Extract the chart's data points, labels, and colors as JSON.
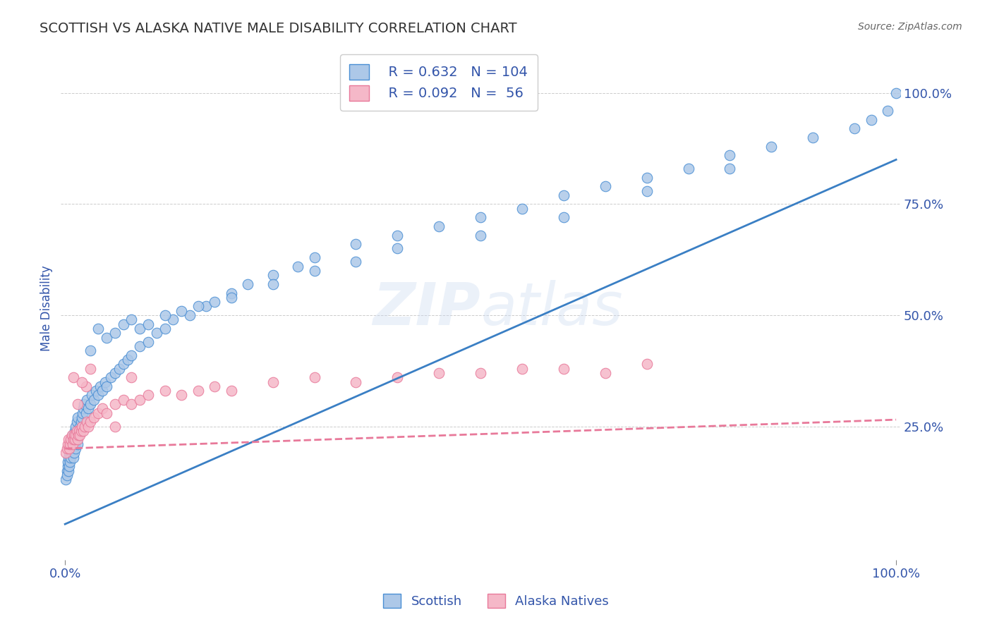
{
  "title": "SCOTTISH VS ALASKA NATIVE MALE DISABILITY CORRELATION CHART",
  "source": "Source: ZipAtlas.com",
  "ylabel": "Male Disability",
  "legend_entries": [
    {
      "label": "Scottish",
      "R": 0.632,
      "N": 104
    },
    {
      "label": "Alaska Natives",
      "R": 0.092,
      "N": 56
    }
  ],
  "blue_scatter_x": [
    0.001,
    0.002,
    0.002,
    0.003,
    0.003,
    0.004,
    0.004,
    0.005,
    0.005,
    0.006,
    0.006,
    0.007,
    0.007,
    0.008,
    0.008,
    0.009,
    0.009,
    0.01,
    0.01,
    0.011,
    0.011,
    0.012,
    0.012,
    0.013,
    0.013,
    0.014,
    0.014,
    0.015,
    0.015,
    0.016,
    0.017,
    0.018,
    0.019,
    0.02,
    0.021,
    0.022,
    0.023,
    0.025,
    0.026,
    0.028,
    0.03,
    0.032,
    0.035,
    0.037,
    0.04,
    0.042,
    0.045,
    0.048,
    0.05,
    0.055,
    0.06,
    0.065,
    0.07,
    0.075,
    0.08,
    0.09,
    0.1,
    0.11,
    0.12,
    0.13,
    0.15,
    0.17,
    0.2,
    0.22,
    0.25,
    0.28,
    0.3,
    0.35,
    0.4,
    0.45,
    0.5,
    0.55,
    0.6,
    0.65,
    0.7,
    0.75,
    0.8,
    0.85,
    0.9,
    0.95,
    0.97,
    0.99,
    0.03,
    0.04,
    0.05,
    0.06,
    0.07,
    0.08,
    0.09,
    0.1,
    0.12,
    0.14,
    0.16,
    0.18,
    0.2,
    0.25,
    0.3,
    0.35,
    0.4,
    0.5,
    0.6,
    0.7,
    0.8,
    1.0
  ],
  "blue_scatter_y": [
    0.13,
    0.15,
    0.14,
    0.16,
    0.17,
    0.15,
    0.18,
    0.16,
    0.19,
    0.17,
    0.2,
    0.18,
    0.21,
    0.19,
    0.22,
    0.2,
    0.23,
    0.18,
    0.22,
    0.19,
    0.23,
    0.21,
    0.24,
    0.2,
    0.25,
    0.22,
    0.26,
    0.21,
    0.27,
    0.23,
    0.24,
    0.25,
    0.26,
    0.27,
    0.28,
    0.29,
    0.3,
    0.28,
    0.31,
    0.29,
    0.3,
    0.32,
    0.31,
    0.33,
    0.32,
    0.34,
    0.33,
    0.35,
    0.34,
    0.36,
    0.37,
    0.38,
    0.39,
    0.4,
    0.41,
    0.43,
    0.44,
    0.46,
    0.47,
    0.49,
    0.5,
    0.52,
    0.55,
    0.57,
    0.59,
    0.61,
    0.63,
    0.66,
    0.68,
    0.7,
    0.72,
    0.74,
    0.77,
    0.79,
    0.81,
    0.83,
    0.86,
    0.88,
    0.9,
    0.92,
    0.94,
    0.96,
    0.42,
    0.47,
    0.45,
    0.46,
    0.48,
    0.49,
    0.47,
    0.48,
    0.5,
    0.51,
    0.52,
    0.53,
    0.54,
    0.57,
    0.6,
    0.62,
    0.65,
    0.68,
    0.72,
    0.78,
    0.83,
    1.0
  ],
  "pink_scatter_x": [
    0.001,
    0.002,
    0.003,
    0.004,
    0.005,
    0.006,
    0.007,
    0.008,
    0.009,
    0.01,
    0.011,
    0.012,
    0.013,
    0.014,
    0.015,
    0.016,
    0.017,
    0.018,
    0.019,
    0.02,
    0.022,
    0.024,
    0.026,
    0.028,
    0.03,
    0.035,
    0.04,
    0.045,
    0.05,
    0.06,
    0.07,
    0.08,
    0.09,
    0.1,
    0.12,
    0.14,
    0.16,
    0.18,
    0.2,
    0.25,
    0.3,
    0.35,
    0.4,
    0.45,
    0.5,
    0.55,
    0.6,
    0.65,
    0.7,
    0.03,
    0.025,
    0.015,
    0.01,
    0.02,
    0.06,
    0.08
  ],
  "pink_scatter_y": [
    0.19,
    0.2,
    0.21,
    0.22,
    0.2,
    0.21,
    0.22,
    0.23,
    0.21,
    0.22,
    0.23,
    0.22,
    0.23,
    0.24,
    0.22,
    0.23,
    0.24,
    0.23,
    0.24,
    0.25,
    0.24,
    0.25,
    0.26,
    0.25,
    0.26,
    0.27,
    0.28,
    0.29,
    0.28,
    0.3,
    0.31,
    0.3,
    0.31,
    0.32,
    0.33,
    0.32,
    0.33,
    0.34,
    0.33,
    0.35,
    0.36,
    0.35,
    0.36,
    0.37,
    0.37,
    0.38,
    0.38,
    0.37,
    0.39,
    0.38,
    0.34,
    0.3,
    0.36,
    0.35,
    0.25,
    0.36
  ],
  "blue_line_x": [
    0.0,
    1.0
  ],
  "blue_line_y": [
    0.03,
    0.85
  ],
  "pink_line_x": [
    0.0,
    1.0
  ],
  "pink_line_y": [
    0.2,
    0.265
  ],
  "blue_dot_color": "#adc8e8",
  "blue_edge_color": "#4a8fd4",
  "pink_dot_color": "#f5b8c8",
  "pink_edge_color": "#e8799a",
  "blue_line_color": "#3a7fc4",
  "pink_line_color": "#e8799a",
  "grid_color": "#aaaaaa",
  "title_color": "#333333",
  "axis_color": "#3355aa",
  "watermark_color": "#c8d8f0",
  "bg_color": "#ffffff",
  "xlim": [
    -0.005,
    1.005
  ],
  "ylim": [
    -0.05,
    1.08
  ]
}
